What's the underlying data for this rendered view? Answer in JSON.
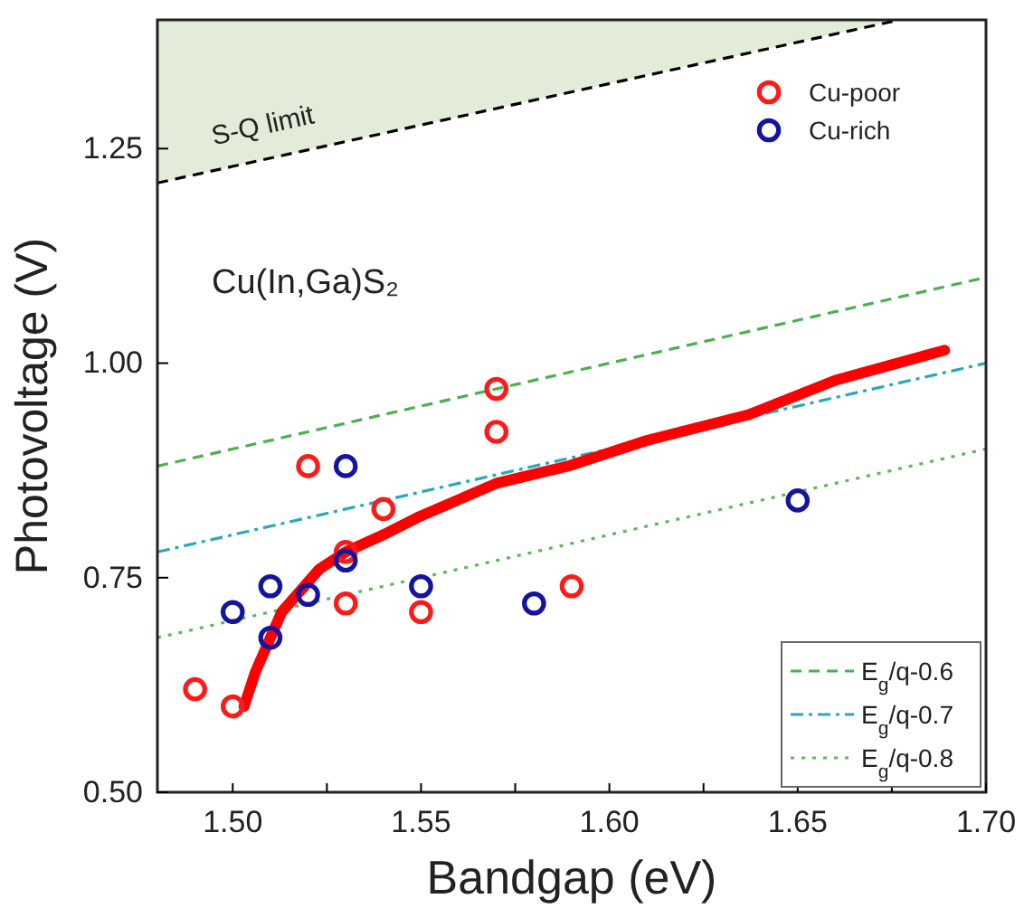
{
  "chart_data": {
    "type": "scatter",
    "xlabel": "Bandgap (eV)",
    "ylabel": "Photovoltage (V)",
    "xlim": [
      1.48,
      1.7
    ],
    "ylim": [
      0.5,
      1.4
    ],
    "xticks": [
      {
        "value": 1.5,
        "label": "1.50"
      },
      {
        "value": 1.525,
        "label": null
      },
      {
        "value": 1.55,
        "label": "1.55"
      },
      {
        "value": 1.575,
        "label": null
      },
      {
        "value": 1.6,
        "label": "1.60"
      },
      {
        "value": 1.625,
        "label": null
      },
      {
        "value": 1.65,
        "label": "1.65"
      },
      {
        "value": 1.675,
        "label": null
      },
      {
        "value": 1.7,
        "label": "1.70"
      }
    ],
    "yticks": [
      {
        "value": 0.5,
        "label": "0.50"
      },
      0.75,
      {
        "value": 1.0,
        "label": "1.00"
      },
      1.25
    ],
    "grid": false,
    "legend": "right",
    "marker": "circle",
    "annotations": [
      "Cu(In,Ga)S₂"
    ],
    "series": [
      {
        "name": "S-Q limit",
        "type": "line",
        "color": "#000000",
        "line_style": "dashed",
        "marker": "none",
        "x": [
          1.48,
          1.677
        ],
        "values": [
          1.21,
          1.4
        ],
        "lower": [
          1.21,
          1.4
        ],
        "upper": [
          1.4,
          1.4
        ]
      },
      {
        "name": "E$_{g}$/q-0.6",
        "type": "line",
        "color": "#4caf50",
        "line_style": "dashed",
        "marker": "none",
        "x": [
          1.48,
          1.7
        ],
        "values": [
          0.88,
          1.1
        ]
      },
      {
        "name": "E$_{g}$/q-0.7",
        "type": "line",
        "color": "#2aa8b8",
        "line_style": "dashdot",
        "marker": "none",
        "x": [
          1.48,
          1.7
        ],
        "values": [
          0.78,
          1.0
        ]
      },
      {
        "name": "E$_{g}$/q-0.8",
        "type": "line",
        "color": "#5cb85c",
        "line_style": "dotted",
        "marker": "none",
        "x": [
          1.48,
          1.7
        ],
        "values": [
          0.68,
          0.9
        ]
      },
      {
        "type": "line",
        "color": "#ff0000",
        "line_style": "solid",
        "marker": "none",
        "x": [
          1.503,
          1.506,
          1.509,
          1.513,
          1.517,
          1.523,
          1.53,
          1.54,
          1.549,
          1.57,
          1.589,
          1.61,
          1.637,
          1.66,
          1.689
        ],
        "values": [
          0.6,
          0.64,
          0.67,
          0.71,
          0.73,
          0.76,
          0.78,
          0.8,
          0.82,
          0.86,
          0.88,
          0.91,
          0.94,
          0.98,
          1.015
        ]
      },
      {
        "name": "Cu-poor",
        "color": "#ff1a1a",
        "x": [
          1.49,
          1.5,
          1.52,
          1.53,
          1.53,
          1.54,
          1.55,
          1.57,
          1.57,
          1.59
        ],
        "values": [
          0.62,
          0.6,
          0.88,
          0.78,
          0.72,
          0.83,
          0.71,
          0.92,
          0.97,
          0.74
        ]
      },
      {
        "name": "Cu-rich",
        "color": "#1414a0",
        "x": [
          1.5,
          1.51,
          1.51,
          1.52,
          1.53,
          1.53,
          1.55,
          1.58,
          1.65
        ],
        "values": [
          0.71,
          0.74,
          0.68,
          0.73,
          0.88,
          0.77,
          0.74,
          0.72,
          0.84
        ]
      }
    ]
  }
}
